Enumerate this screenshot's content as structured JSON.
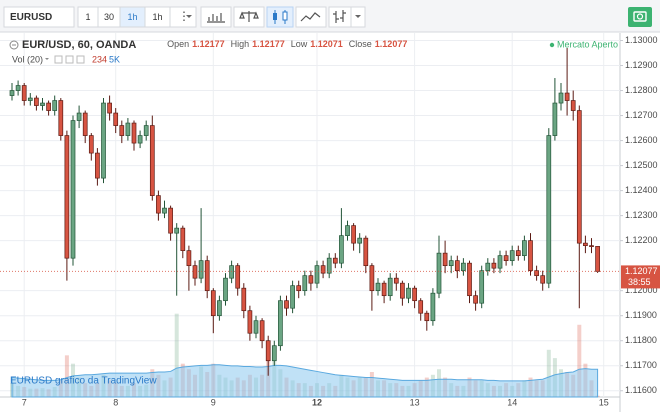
{
  "toolbar": {
    "symbol": "EURUSD",
    "intervals": [
      "1",
      "30",
      "1h",
      "1h"
    ]
  },
  "chart_data": {
    "type": "candlestick",
    "ohlc_labels": [
      "Open",
      "High",
      "Low",
      "Close"
    ],
    "status": "Mercato Aperto",
    "volume_title": "Vol (20)",
    "watermark": "EURUSD grafico da TradingView",
    "countdown": "38:55",
    "categories": [
      null,
      null,
      "7",
      null,
      null,
      null,
      null,
      null,
      null,
      null,
      null,
      null,
      null,
      null,
      null,
      null,
      null,
      "8",
      null,
      null,
      null,
      null,
      null,
      null,
      null,
      null,
      null,
      null,
      null,
      null,
      null,
      null,
      null,
      "9",
      null,
      null,
      null,
      null,
      null,
      null,
      null,
      null,
      null,
      null,
      null,
      null,
      null,
      null,
      null,
      null,
      "12",
      null,
      null,
      null,
      null,
      null,
      null,
      null,
      null,
      null,
      null,
      null,
      null,
      null,
      null,
      null,
      "13",
      null,
      null,
      null,
      null,
      null,
      null,
      null,
      null,
      null,
      null,
      null,
      null,
      null,
      null,
      null,
      "14",
      null,
      null,
      null,
      null,
      null,
      null,
      null,
      null,
      null,
      null,
      null,
      null,
      null,
      null,
      "15"
    ],
    "series": [
      {
        "name": "EUR/USD, 60, OANDA",
        "up_color": "#6ba583",
        "down_color": "#d75442",
        "up_border": "#225437",
        "down_border": "#5b1a13",
        "open": [
          1.1278,
          1.128,
          1.1282,
          1.1276,
          1.1277,
          1.1274,
          1.1275,
          1.1272,
          1.1276,
          1.1262,
          1.1213,
          1.1268,
          1.1271,
          1.1262,
          1.1255,
          1.1245,
          1.1275,
          1.1271,
          1.1266,
          1.1262,
          1.1267,
          1.1259,
          1.1262,
          1.1266,
          1.1238,
          1.1231,
          1.1233,
          1.1223,
          1.1225,
          1.1216,
          1.121,
          1.1205,
          1.1212,
          1.12,
          1.119,
          1.1196,
          1.1205,
          1.121,
          1.1201,
          1.1192,
          1.1183,
          1.1188,
          1.118,
          1.1172,
          1.1178,
          1.1196,
          1.1193,
          1.1202,
          1.12,
          1.1206,
          1.1203,
          1.121,
          1.1207,
          1.1213,
          1.1211,
          1.1222,
          1.1226,
          1.1219,
          1.1221,
          1.121,
          1.12,
          1.1203,
          1.1198,
          1.1205,
          1.1203,
          1.1197,
          1.1201,
          1.1196,
          1.1191,
          1.1188,
          1.1199,
          1.1215,
          1.121,
          1.1212,
          1.1208,
          1.1211,
          1.1198,
          1.1195,
          1.1208,
          1.1211,
          1.1209,
          1.1214,
          1.1212,
          1.1216,
          1.1214,
          1.122,
          1.1208,
          1.1206,
          1.1203,
          1.1262,
          1.1275,
          1.1279,
          1.1276,
          1.1272,
          1.1219,
          1.1218,
          1.12177,
          null
        ],
        "high": [
          1.1283,
          1.1284,
          1.1283,
          1.1279,
          1.1278,
          1.1277,
          1.1276,
          1.1278,
          1.1277,
          1.1264,
          1.127,
          1.1274,
          1.1272,
          1.1263,
          1.1257,
          1.1277,
          1.1278,
          1.1273,
          1.1268,
          1.1269,
          1.1268,
          1.1264,
          1.1268,
          1.127,
          1.124,
          1.1236,
          1.1234,
          1.1227,
          1.1226,
          1.1218,
          1.1212,
          1.1233,
          1.1214,
          1.1201,
          1.1198,
          1.1207,
          1.1212,
          1.1211,
          1.1203,
          1.1194,
          1.119,
          1.1189,
          1.1182,
          1.118,
          1.1198,
          1.1198,
          1.1204,
          1.1204,
          1.1208,
          1.1208,
          1.1212,
          1.1212,
          1.1215,
          1.1215,
          1.1233,
          1.1228,
          1.1227,
          1.1223,
          1.1222,
          1.1211,
          1.1205,
          1.1204,
          1.1207,
          1.1207,
          1.1204,
          1.1203,
          1.1202,
          1.1197,
          1.1192,
          1.1201,
          1.1222,
          1.122,
          1.1214,
          1.1214,
          1.1213,
          1.1212,
          1.12,
          1.121,
          1.1213,
          1.1213,
          1.1216,
          1.1216,
          1.1218,
          1.1218,
          1.1222,
          1.1223,
          1.121,
          1.1208,
          1.1265,
          1.1285,
          1.1283,
          1.1297,
          1.128,
          1.1274,
          1.1222,
          1.1221,
          1.12177,
          null
        ],
        "low": [
          1.1276,
          1.1278,
          1.1274,
          1.1274,
          1.1272,
          1.1272,
          1.127,
          1.127,
          1.126,
          1.1204,
          1.121,
          1.1265,
          1.1259,
          1.1252,
          1.1242,
          1.1243,
          1.1268,
          1.1263,
          1.1259,
          1.126,
          1.1256,
          1.1257,
          1.126,
          1.1236,
          1.1228,
          1.1229,
          1.122,
          1.1198,
          1.1213,
          1.12,
          1.1202,
          1.1203,
          1.1197,
          1.1183,
          1.1188,
          1.1194,
          1.1203,
          1.1198,
          1.1189,
          1.118,
          1.1181,
          1.1177,
          1.1166,
          1.117,
          1.1176,
          1.119,
          1.1191,
          1.1197,
          1.1198,
          1.12,
          1.1201,
          1.1205,
          1.1205,
          1.1209,
          1.1209,
          1.122,
          1.1216,
          1.1215,
          1.1207,
          1.1192,
          1.1198,
          1.1195,
          1.1196,
          1.12,
          1.1194,
          1.1195,
          1.1193,
          1.1188,
          1.1184,
          1.1186,
          1.1197,
          1.1207,
          1.1207,
          1.1205,
          1.1206,
          1.1195,
          1.1192,
          1.1193,
          1.1206,
          1.1207,
          1.1207,
          1.121,
          1.121,
          1.1212,
          1.1212,
          1.1206,
          1.1204,
          1.12,
          1.1201,
          1.126,
          1.1272,
          1.127,
          1.1268,
          1.1193,
          1.1215,
          1.1215,
          1.12071,
          null
        ],
        "close": [
          1.128,
          1.1282,
          1.1276,
          1.1277,
          1.1274,
          1.1275,
          1.1272,
          1.1276,
          1.1262,
          1.1213,
          1.1268,
          1.1271,
          1.1262,
          1.1255,
          1.1245,
          1.1275,
          1.1271,
          1.1266,
          1.1262,
          1.1267,
          1.1259,
          1.1262,
          1.1266,
          1.1238,
          1.1231,
          1.1233,
          1.1223,
          1.1225,
          1.1216,
          1.121,
          1.1205,
          1.1212,
          1.12,
          1.119,
          1.1196,
          1.1205,
          1.121,
          1.1201,
          1.1192,
          1.1183,
          1.1188,
          1.118,
          1.1172,
          1.1178,
          1.1196,
          1.1193,
          1.1202,
          1.12,
          1.1206,
          1.1203,
          1.121,
          1.1207,
          1.1213,
          1.1211,
          1.1222,
          1.1226,
          1.1219,
          1.1221,
          1.121,
          1.12,
          1.1203,
          1.1198,
          1.1205,
          1.1203,
          1.1197,
          1.1201,
          1.1196,
          1.1191,
          1.1188,
          1.1199,
          1.1215,
          1.121,
          1.1212,
          1.1208,
          1.1211,
          1.1198,
          1.1195,
          1.1208,
          1.1211,
          1.1209,
          1.1214,
          1.1212,
          1.1216,
          1.1214,
          1.122,
          1.1208,
          1.1206,
          1.1203,
          1.1262,
          1.1275,
          1.1279,
          1.1276,
          1.1272,
          1.1219,
          1.1218,
          1.12177,
          1.12077,
          null
        ]
      }
    ],
    "volume": {
      "ylim": [
        0,
        18000
      ],
      "ma_color": "#8cc8ee",
      "values": [
        2500,
        2000,
        1800,
        1500,
        1500,
        1600,
        1400,
        1800,
        3000,
        7500,
        6000,
        3500,
        2500,
        2000,
        2500,
        4000,
        3000,
        2500,
        2000,
        2000,
        2500,
        2000,
        2200,
        5000,
        4000,
        3000,
        3500,
        15000,
        6000,
        5000,
        4000,
        5500,
        4500,
        6000,
        4000,
        3500,
        3000,
        3500,
        3000,
        4000,
        3500,
        4000,
        6500,
        9000,
        5000,
        3500,
        3000,
        2500,
        2500,
        2000,
        2500,
        2000,
        2500,
        2000,
        4000,
        3500,
        3000,
        3500,
        3500,
        4500,
        3000,
        3000,
        2500,
        2500,
        2000,
        2000,
        2500,
        3000,
        3500,
        4000,
        5000,
        3500,
        2500,
        2000,
        2000,
        3500,
        3000,
        3000,
        2500,
        2000,
        2000,
        2500,
        2000,
        2500,
        3000,
        3500,
        3000,
        3000,
        8500,
        7000,
        5000,
        4500,
        4000,
        13000,
        6000,
        3000,
        234,
        null
      ],
      "ma": [
        3500,
        3400,
        3300,
        3200,
        3100,
        3000,
        3000,
        3000,
        3100,
        3500,
        3800,
        3900,
        4000,
        4000,
        4100,
        4200,
        4300,
        4300,
        4300,
        4300,
        4300,
        4300,
        4300,
        4400,
        4500,
        4500,
        4600,
        5200,
        5400,
        5500,
        5600,
        5700,
        5700,
        5800,
        5800,
        5700,
        5600,
        5600,
        5500,
        5500,
        5400,
        5400,
        5500,
        5700,
        5700,
        5600,
        5400,
        5200,
        5000,
        4800,
        4600,
        4400,
        4200,
        4000,
        3900,
        3800,
        3700,
        3600,
        3500,
        3500,
        3400,
        3300,
        3200,
        3100,
        3000,
        3000,
        3000,
        3000,
        3000,
        3100,
        3200,
        3200,
        3200,
        3100,
        3100,
        3100,
        3100,
        3100,
        3000,
        3000,
        2900,
        2900,
        2900,
        2900,
        2900,
        3000,
        3100,
        3200,
        3600,
        4000,
        4200,
        4400,
        4500,
        5000,
        5100,
        5000,
        5000,
        null
      ],
      "readout_ma": {
        "value": 5000,
        "label": "5K"
      }
    },
    "ylim": [
      1.11575,
      1.1303
    ],
    "yticks": [
      {
        "value": 1.116,
        "label": "1.11600"
      },
      {
        "value": 1.117,
        "label": "1.11700"
      },
      {
        "value": 1.118,
        "label": "1.11800"
      },
      {
        "value": 1.119,
        "label": "1.11900"
      },
      {
        "value": 1.12,
        "label": "1.12000"
      },
      {
        "value": 1.122,
        "label": "1.12200"
      },
      {
        "value": 1.123,
        "label": "1.12300"
      },
      {
        "value": 1.124,
        "label": "1.12400"
      },
      {
        "value": 1.125,
        "label": "1.12500"
      },
      {
        "value": 1.126,
        "label": "1.12600"
      },
      {
        "value": 1.127,
        "label": "1.12700"
      },
      {
        "value": 1.128,
        "label": "1.12800"
      },
      {
        "value": 1.129,
        "label": "1.12900"
      },
      {
        "value": 1.13,
        "label": "1.13000"
      }
    ],
    "grid": true
  }
}
